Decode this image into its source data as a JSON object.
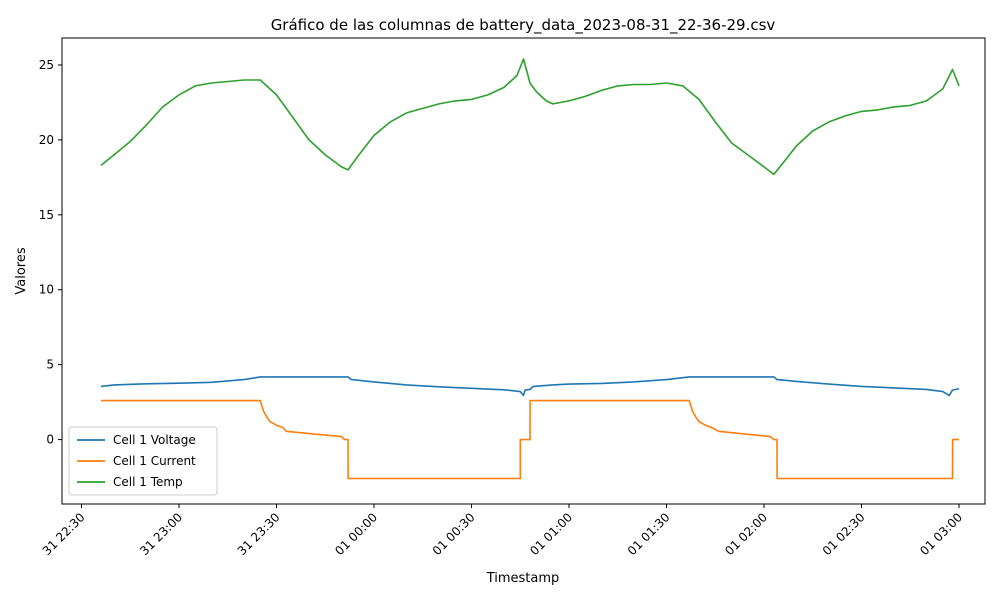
{
  "chart_data": {
    "type": "line",
    "title": "Gráfico de las columnas de battery_data_2023-08-31_22-36-29.csv",
    "xlabel": "Timestamp",
    "ylabel": "Valores",
    "x_ticks": [
      {
        "t": "2023-08-31T22:30",
        "label": "31 22:30"
      },
      {
        "t": "2023-08-31T23:00",
        "label": "31 23:00"
      },
      {
        "t": "2023-08-31T23:30",
        "label": "31 23:30"
      },
      {
        "t": "2023-09-01T00:00",
        "label": "01 00:00"
      },
      {
        "t": "2023-09-01T00:30",
        "label": "01 00:30"
      },
      {
        "t": "2023-09-01T01:00",
        "label": "01 01:00"
      },
      {
        "t": "2023-09-01T01:30",
        "label": "01 01:30"
      },
      {
        "t": "2023-09-01T02:00",
        "label": "01 02:00"
      },
      {
        "t": "2023-09-01T02:30",
        "label": "01 02:30"
      },
      {
        "t": "2023-09-01T03:00",
        "label": "01 03:00"
      }
    ],
    "xlim": [
      "2023-08-31T22:24",
      "2023-09-01T03:08"
    ],
    "ylim": [
      -4.3,
      26.8
    ],
    "y_ticks": [
      0,
      5,
      10,
      15,
      20,
      25
    ],
    "grid": false,
    "legend_position": "lower-left",
    "series": [
      {
        "name": "Cell 1 Voltage",
        "color": "#1f77b4",
        "points": [
          [
            "2023-08-31T22:36",
            3.55
          ],
          [
            "2023-08-31T22:40",
            3.65
          ],
          [
            "2023-08-31T22:50",
            3.72
          ],
          [
            "2023-08-31T23:00",
            3.76
          ],
          [
            "2023-08-31T23:10",
            3.82
          ],
          [
            "2023-08-31T23:20",
            4.0
          ],
          [
            "2023-08-31T23:25",
            4.18
          ],
          [
            "2023-08-31T23:35",
            4.18
          ],
          [
            "2023-08-31T23:45",
            4.18
          ],
          [
            "2023-08-31T23:52",
            4.18
          ],
          [
            "2023-08-31T23:53",
            4.0
          ],
          [
            "2023-09-01T00:00",
            3.85
          ],
          [
            "2023-09-01T00:10",
            3.65
          ],
          [
            "2023-09-01T00:20",
            3.52
          ],
          [
            "2023-09-01T00:30",
            3.42
          ],
          [
            "2023-09-01T00:40",
            3.32
          ],
          [
            "2023-09-01T00:45",
            3.2
          ],
          [
            "2023-09-01T00:46",
            2.95
          ],
          [
            "2023-09-01T00:46:30",
            3.3
          ],
          [
            "2023-09-01T00:48",
            3.35
          ],
          [
            "2023-09-01T00:49",
            3.55
          ],
          [
            "2023-09-01T00:55",
            3.65
          ],
          [
            "2023-09-01T01:00",
            3.7
          ],
          [
            "2023-09-01T01:10",
            3.75
          ],
          [
            "2023-09-01T01:20",
            3.85
          ],
          [
            "2023-09-01T01:30",
            4.0
          ],
          [
            "2023-09-01T01:37",
            4.18
          ],
          [
            "2023-09-01T01:45",
            4.18
          ],
          [
            "2023-09-01T02:03",
            4.18
          ],
          [
            "2023-09-01T02:04",
            4.0
          ],
          [
            "2023-09-01T02:10",
            3.88
          ],
          [
            "2023-09-01T02:20",
            3.7
          ],
          [
            "2023-09-01T02:30",
            3.55
          ],
          [
            "2023-09-01T02:40",
            3.45
          ],
          [
            "2023-09-01T02:50",
            3.35
          ],
          [
            "2023-09-01T02:55",
            3.2
          ],
          [
            "2023-09-01T02:57",
            2.95
          ],
          [
            "2023-09-01T02:58",
            3.3
          ],
          [
            "2023-09-01T02:59",
            3.35
          ],
          [
            "2023-09-01T03:00",
            3.4
          ]
        ]
      },
      {
        "name": "Cell 1 Current",
        "color": "#ff7f0e",
        "points": [
          [
            "2023-08-31T22:36",
            2.6
          ],
          [
            "2023-08-31T23:25",
            2.6
          ],
          [
            "2023-08-31T23:26",
            1.9
          ],
          [
            "2023-08-31T23:27",
            1.5
          ],
          [
            "2023-08-31T23:28",
            1.2
          ],
          [
            "2023-08-31T23:30",
            0.95
          ],
          [
            "2023-08-31T23:32",
            0.8
          ],
          [
            "2023-08-31T23:33",
            0.55
          ],
          [
            "2023-08-31T23:40",
            0.4
          ],
          [
            "2023-08-31T23:50",
            0.2
          ],
          [
            "2023-08-31T23:51",
            0.0
          ],
          [
            "2023-08-31T23:52",
            0.0
          ],
          [
            "2023-08-31T23:52:01",
            -2.6
          ],
          [
            "2023-09-01T00:45",
            -2.6
          ],
          [
            "2023-09-01T00:45:01",
            0.0
          ],
          [
            "2023-09-01T00:48",
            0.0
          ],
          [
            "2023-09-01T00:48:01",
            2.6
          ],
          [
            "2023-09-01T01:37",
            2.6
          ],
          [
            "2023-09-01T01:38",
            1.9
          ],
          [
            "2023-09-01T01:39",
            1.5
          ],
          [
            "2023-09-01T01:40",
            1.2
          ],
          [
            "2023-09-01T01:42",
            0.95
          ],
          [
            "2023-09-01T01:44",
            0.8
          ],
          [
            "2023-09-01T01:46",
            0.55
          ],
          [
            "2023-09-01T01:55",
            0.35
          ],
          [
            "2023-09-01T02:02",
            0.2
          ],
          [
            "2023-09-01T02:03",
            0.0
          ],
          [
            "2023-09-01T02:04",
            0.0
          ],
          [
            "2023-09-01T02:04:01",
            -2.6
          ],
          [
            "2023-09-01T02:58",
            -2.6
          ],
          [
            "2023-09-01T02:58:01",
            0.0
          ],
          [
            "2023-09-01T03:00",
            0.0
          ]
        ]
      },
      {
        "name": "Cell 1 Temp",
        "color": "#2ca02c",
        "points": [
          [
            "2023-08-31T22:36",
            18.3
          ],
          [
            "2023-08-31T22:40",
            19.0
          ],
          [
            "2023-08-31T22:45",
            19.9
          ],
          [
            "2023-08-31T22:50",
            21.0
          ],
          [
            "2023-08-31T22:55",
            22.2
          ],
          [
            "2023-08-31T23:00",
            23.0
          ],
          [
            "2023-08-31T23:05",
            23.6
          ],
          [
            "2023-08-31T23:10",
            23.8
          ],
          [
            "2023-08-31T23:15",
            23.9
          ],
          [
            "2023-08-31T23:20",
            24.0
          ],
          [
            "2023-08-31T23:25",
            24.0
          ],
          [
            "2023-08-31T23:30",
            23.0
          ],
          [
            "2023-08-31T23:35",
            21.5
          ],
          [
            "2023-08-31T23:40",
            20.0
          ],
          [
            "2023-08-31T23:45",
            19.0
          ],
          [
            "2023-08-31T23:50",
            18.2
          ],
          [
            "2023-08-31T23:52",
            18.0
          ],
          [
            "2023-08-31T23:55",
            18.9
          ],
          [
            "2023-09-01T00:00",
            20.3
          ],
          [
            "2023-09-01T00:05",
            21.2
          ],
          [
            "2023-09-01T00:10",
            21.8
          ],
          [
            "2023-09-01T00:15",
            22.1
          ],
          [
            "2023-09-01T00:20",
            22.4
          ],
          [
            "2023-09-01T00:25",
            22.6
          ],
          [
            "2023-09-01T00:30",
            22.7
          ],
          [
            "2023-09-01T00:35",
            23.0
          ],
          [
            "2023-09-01T00:40",
            23.5
          ],
          [
            "2023-09-01T00:44",
            24.3
          ],
          [
            "2023-09-01T00:46",
            25.4
          ],
          [
            "2023-09-01T00:48",
            23.8
          ],
          [
            "2023-09-01T00:50",
            23.2
          ],
          [
            "2023-09-01T00:53",
            22.6
          ],
          [
            "2023-09-01T00:55",
            22.4
          ],
          [
            "2023-09-01T01:00",
            22.6
          ],
          [
            "2023-09-01T01:05",
            22.9
          ],
          [
            "2023-09-01T01:10",
            23.3
          ],
          [
            "2023-09-01T01:15",
            23.6
          ],
          [
            "2023-09-01T01:20",
            23.7
          ],
          [
            "2023-09-01T01:25",
            23.7
          ],
          [
            "2023-09-01T01:30",
            23.8
          ],
          [
            "2023-09-01T01:35",
            23.6
          ],
          [
            "2023-09-01T01:40",
            22.7
          ],
          [
            "2023-09-01T01:45",
            21.2
          ],
          [
            "2023-09-01T01:50",
            19.8
          ],
          [
            "2023-09-01T01:55",
            19.0
          ],
          [
            "2023-09-01T02:00",
            18.2
          ],
          [
            "2023-09-01T02:03",
            17.7
          ],
          [
            "2023-09-01T02:06",
            18.5
          ],
          [
            "2023-09-01T02:10",
            19.6
          ],
          [
            "2023-09-01T02:15",
            20.6
          ],
          [
            "2023-09-01T02:20",
            21.2
          ],
          [
            "2023-09-01T02:25",
            21.6
          ],
          [
            "2023-09-01T02:30",
            21.9
          ],
          [
            "2023-09-01T02:35",
            22.0
          ],
          [
            "2023-09-01T02:40",
            22.2
          ],
          [
            "2023-09-01T02:45",
            22.3
          ],
          [
            "2023-09-01T02:50",
            22.6
          ],
          [
            "2023-09-01T02:55",
            23.4
          ],
          [
            "2023-09-01T02:58",
            24.7
          ],
          [
            "2023-09-01T03:00",
            23.6
          ]
        ]
      }
    ]
  }
}
